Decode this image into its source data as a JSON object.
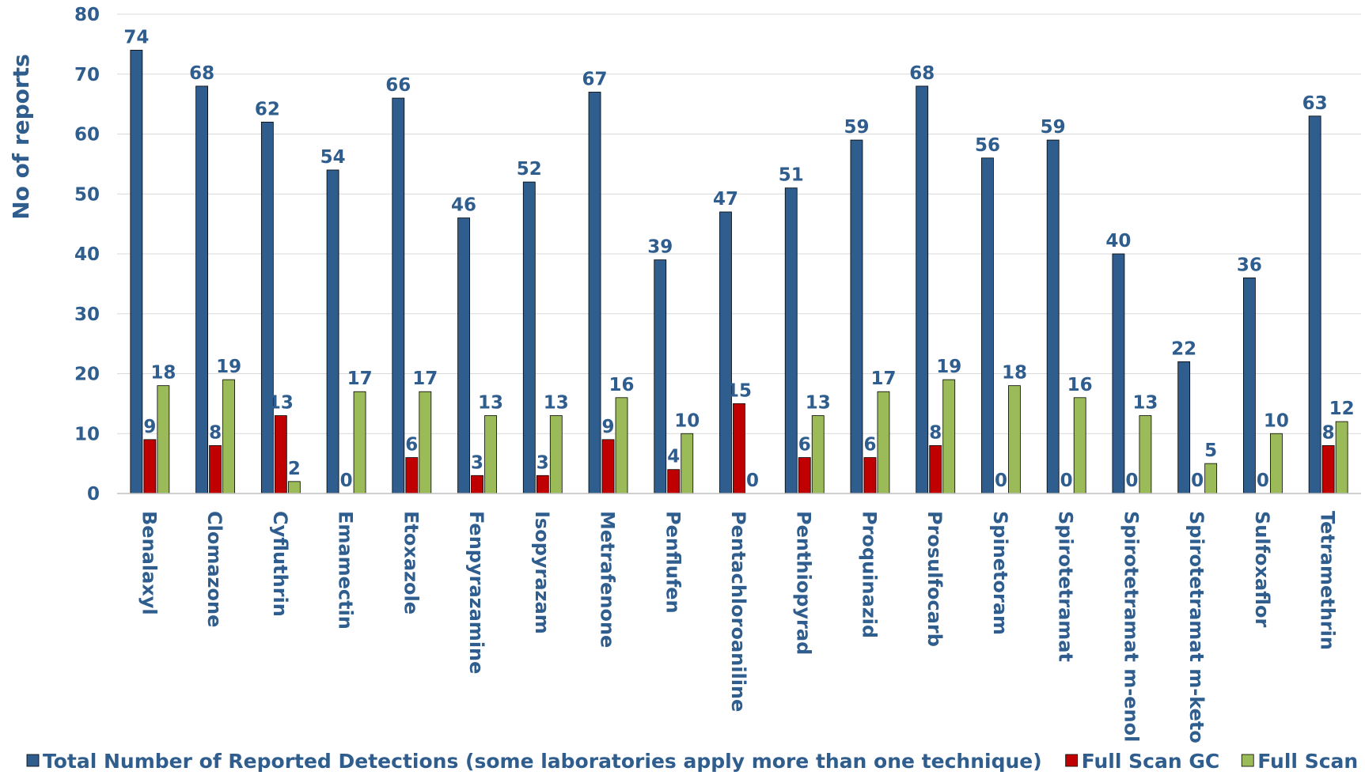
{
  "chart_data": {
    "type": "bar",
    "ylabel": "No of reports",
    "xlabel": "",
    "ylim": [
      0,
      80
    ],
    "yticks": [
      "0",
      "10",
      "20",
      "30",
      "40",
      "50",
      "60",
      "70",
      "80"
    ],
    "grid": true,
    "legend_position": "bottom",
    "categories": [
      "Benalaxyl",
      "Clomazone",
      "Cyfluthrin",
      "Emamectin",
      "Etoxazole",
      "Fenpyrazamine",
      "Isopyrazam",
      "Metrafenone",
      "Penflufen",
      "Pentachloroaniline",
      "Penthiopyrad",
      "Proquinazid",
      "Prosulfocarb",
      "Spinetoram",
      "Spirotetramat",
      "Spirotetramat m-enol",
      "Spirotetramat m-keto",
      "Sulfoxaflor",
      "Tetramethrin"
    ],
    "series": [
      {
        "name": "Total Number of Reported Detections (some laboratories apply more than one technique)",
        "color": "#2e5d8e",
        "values": [
          74,
          68,
          62,
          54,
          66,
          46,
          52,
          67,
          39,
          47,
          51,
          59,
          68,
          56,
          59,
          40,
          22,
          36,
          63
        ]
      },
      {
        "name": "Full Scan GC",
        "color": "#c00000",
        "values": [
          9,
          8,
          13,
          0,
          6,
          3,
          3,
          9,
          4,
          15,
          6,
          6,
          8,
          0,
          0,
          0,
          0,
          0,
          8
        ]
      },
      {
        "name": "Full Scan LC",
        "color": "#9bbb59",
        "values": [
          18,
          19,
          2,
          17,
          17,
          13,
          13,
          16,
          10,
          0,
          13,
          17,
          19,
          18,
          16,
          13,
          5,
          10,
          12
        ]
      }
    ],
    "label_colors": [
      "#2e5d8e",
      "#2e5d8e",
      "#2e5d8e"
    ]
  }
}
